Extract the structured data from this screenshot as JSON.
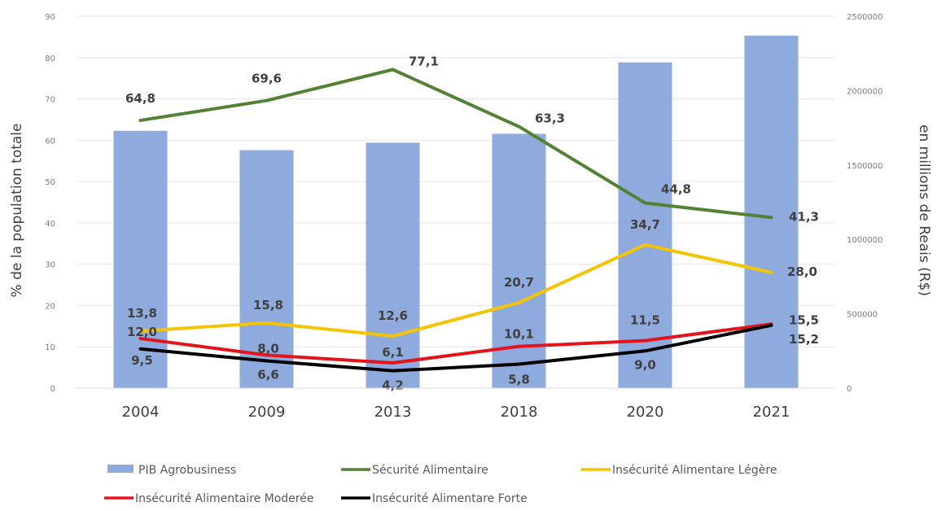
{
  "chart_data": {
    "type": "bar",
    "categories": [
      "2004",
      "2009",
      "2013",
      "2018",
      "2020",
      "2021"
    ],
    "ylabel": "% de la population totale",
    "y2label": "en millions de Reais (R$)",
    "ylim": [
      0,
      90
    ],
    "y2lim": [
      0,
      2500000
    ],
    "yticks": [
      "0",
      "10",
      "20",
      "30",
      "40",
      "50",
      "60",
      "70",
      "80",
      "90"
    ],
    "y2ticks": [
      "0",
      "500000",
      "1000000",
      "1500000",
      "2000000",
      "2500000"
    ],
    "grid": true,
    "legend_position": "bottom",
    "series": [
      {
        "name": "PIB Agrobusiness",
        "kind": "bar",
        "axis": "right",
        "color": "#8faadc",
        "values": [
          1730000,
          1600000,
          1650000,
          1710000,
          2190000,
          2370000
        ]
      },
      {
        "name": "Sécurité Alimentaire",
        "kind": "line",
        "axis": "left",
        "color": "#548235",
        "values": [
          64.8,
          69.6,
          77.1,
          63.3,
          44.8,
          41.3
        ],
        "labels": [
          "64,8",
          "69,6",
          "77,1",
          "63,3",
          "44,8",
          "41,3"
        ]
      },
      {
        "name": "Insécurité Alimentare Légère",
        "kind": "line",
        "axis": "left",
        "color": "#f5c400",
        "values": [
          13.8,
          15.8,
          12.6,
          20.7,
          34.7,
          28.0
        ],
        "labels": [
          "13,8",
          "15,8",
          "12,6",
          "20,7",
          "34,7",
          "28,0"
        ]
      },
      {
        "name": "Insécurité Alimentaire Moderée",
        "kind": "line",
        "axis": "left",
        "color": "#e3141b",
        "values": [
          12.0,
          8.0,
          6.1,
          10.1,
          11.5,
          15.5
        ],
        "labels": [
          "12,0",
          "8,0",
          "6,1",
          "10,1",
          "11,5",
          "15,5"
        ]
      },
      {
        "name": "Insécurité Alimentare Forte",
        "kind": "line",
        "axis": "left",
        "color": "#000000",
        "values": [
          9.5,
          6.6,
          4.2,
          5.8,
          9.0,
          15.2
        ],
        "labels": [
          "9,5",
          "6,6",
          "4,2",
          "5,8",
          "9,0",
          "15,2"
        ]
      }
    ]
  }
}
